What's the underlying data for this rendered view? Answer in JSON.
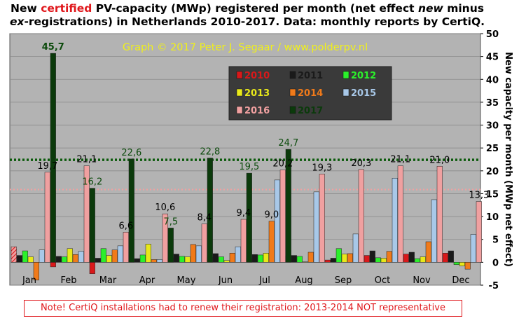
{
  "title": {
    "part1": "New ",
    "certified": "certified",
    "part2": " PV-capacity (MWp) registered per month (net effect ",
    "new": "new",
    "part3": " minus ",
    "ex": "ex",
    "part4": "-registrations) in Netherlands 2010-2017. Data: monthly reports by CertiQ."
  },
  "note": "Note! CertiQ installations  had to renew their registration: 2013-2014  NOT representative",
  "chart_data": {
    "type": "bar",
    "annotation": "Graph © 2017 Peter J. Segaar / www.polderpv.nl",
    "ylabel": "New capacity per month (MWp net effect)",
    "ylim": [
      -5,
      50
    ],
    "yticks": [
      -5,
      0,
      5,
      10,
      15,
      20,
      25,
      30,
      35,
      40,
      45,
      50
    ],
    "grid": true,
    "legend_position": "top-center",
    "categories": [
      "Jan",
      "Feb",
      "Mar",
      "Apr",
      "May",
      "Jun",
      "Jul",
      "Aug",
      "Sep",
      "Oct",
      "Nov",
      "Dec"
    ],
    "series": [
      {
        "name": "2010",
        "color": "#d9181a",
        "values": [
          3.4,
          -1.0,
          -2.5,
          0.4,
          1.0,
          1.1,
          0.8,
          1.4,
          0.5,
          1.5,
          1.8,
          2.0
        ]
      },
      {
        "name": "2011",
        "color": "#1a1a1a",
        "values": [
          1.5,
          1.3,
          0.9,
          0.8,
          1.8,
          1.9,
          1.7,
          1.5,
          0.9,
          2.5,
          2.2,
          2.5
        ]
      },
      {
        "name": "2012",
        "color": "#2bf02b",
        "values": [
          2.5,
          1.2,
          3.0,
          1.6,
          1.3,
          1.2,
          1.6,
          1.3,
          3.0,
          1.0,
          0.8,
          -0.5
        ]
      },
      {
        "name": "2013",
        "color": "#e8e81a",
        "values": [
          1.2,
          3.0,
          1.5,
          4.0,
          1.2,
          0.4,
          2.0,
          0.1,
          1.8,
          0.9,
          1.2,
          -0.8
        ]
      },
      {
        "name": "2014",
        "color": "#f07a1a",
        "values": [
          -3.9,
          1.7,
          2.7,
          0.6,
          3.9,
          2.0,
          9.0,
          2.2,
          1.9,
          2.4,
          4.5,
          -1.5
        ]
      },
      {
        "name": "2015",
        "color": "#a8c8e8",
        "values": [
          2.7,
          2.4,
          3.6,
          0.6,
          3.6,
          3.4,
          18.0,
          15.4,
          6.2,
          18.4,
          13.7,
          6.1
        ]
      },
      {
        "name": "2016",
        "color": "#f0a0a0",
        "values": [
          19.7,
          21.1,
          6.6,
          10.6,
          8.4,
          9.4,
          20.2,
          19.3,
          20.3,
          21.1,
          21.0,
          13.3
        ]
      },
      {
        "name": "2017",
        "color": "#0b3a0b",
        "values": [
          45.7,
          16.2,
          22.6,
          7.5,
          22.8,
          19.5,
          24.7,
          null,
          null,
          null,
          null,
          null
        ]
      }
    ],
    "data_labels": [
      {
        "series": "2017",
        "month": "Jan",
        "text": "45,7"
      },
      {
        "series": "2016",
        "month": "Jan",
        "text": "19,7"
      },
      {
        "series": "2016",
        "month": "Feb",
        "text": "21,1"
      },
      {
        "series": "2017",
        "month": "Feb",
        "text": "16,2"
      },
      {
        "series": "2016",
        "month": "Mar",
        "text": "6,6"
      },
      {
        "series": "2017",
        "month": "Mar",
        "text": "22,6"
      },
      {
        "series": "2016",
        "month": "Apr",
        "text": "10,6"
      },
      {
        "series": "2017",
        "month": "Apr",
        "text": "7,5"
      },
      {
        "series": "2016",
        "month": "May",
        "text": "8,4"
      },
      {
        "series": "2017",
        "month": "May",
        "text": "22,8"
      },
      {
        "series": "2016",
        "month": "Jun",
        "text": "9,4"
      },
      {
        "series": "2017",
        "month": "Jun",
        "text": "19,5"
      },
      {
        "series": "2014",
        "month": "Jul",
        "text": "9,0"
      },
      {
        "series": "2016",
        "month": "Jul",
        "text": "20,2"
      },
      {
        "series": "2017",
        "month": "Jul",
        "text": "24,7"
      },
      {
        "series": "2016",
        "month": "Aug",
        "text": "19,3"
      },
      {
        "series": "2016",
        "month": "Sep",
        "text": "20,3"
      },
      {
        "series": "2016",
        "month": "Oct",
        "text": "21,1"
      },
      {
        "series": "2016",
        "month": "Nov",
        "text": "21,0"
      },
      {
        "series": "2016",
        "month": "Dec",
        "text": "13,3"
      }
    ],
    "reference_lines": [
      {
        "value": 22.4,
        "color": "#0b5a0b",
        "style": "dotted"
      },
      {
        "value": 15.9,
        "color": "#f0a0a0",
        "style": "dotted"
      }
    ]
  }
}
